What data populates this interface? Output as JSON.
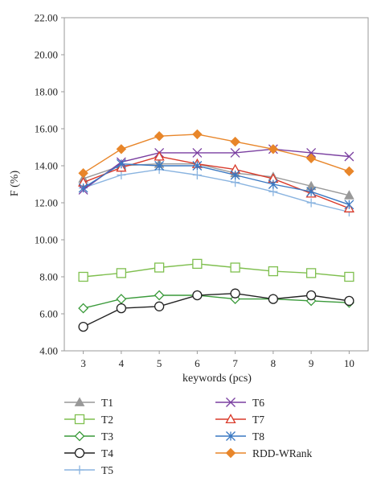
{
  "chart_data": {
    "type": "line",
    "xlabel": "keywords (pcs)",
    "ylabel": "F (%)",
    "x": [
      3,
      4,
      5,
      6,
      7,
      8,
      9,
      10
    ],
    "xticks": [
      "3",
      "4",
      "5",
      "6",
      "7",
      "8",
      "9",
      "10"
    ],
    "ylim": [
      4,
      22
    ],
    "yticks": [
      "4.00",
      "6.00",
      "8.00",
      "10.00",
      "12.00",
      "14.00",
      "16.00",
      "18.00",
      "20.00",
      "22.00"
    ],
    "grid": false,
    "legend_position": "bottom",
    "series": [
      {
        "name": "T1",
        "color": "#999999",
        "marker": "triangle-filled",
        "values": [
          13.3,
          14.0,
          14.1,
          14.1,
          13.6,
          13.4,
          12.9,
          12.4
        ]
      },
      {
        "name": "T2",
        "color": "#7fbf4f",
        "marker": "square-open",
        "values": [
          8.0,
          8.2,
          8.5,
          8.7,
          8.5,
          8.3,
          8.2,
          8.0
        ]
      },
      {
        "name": "T3",
        "color": "#3a9a3a",
        "marker": "diamond-open",
        "values": [
          6.3,
          6.8,
          7.0,
          7.0,
          6.8,
          6.8,
          6.7,
          6.6
        ]
      },
      {
        "name": "T4",
        "color": "#222222",
        "marker": "circle-open",
        "values": [
          5.3,
          6.3,
          6.4,
          7.0,
          7.1,
          6.8,
          7.0,
          6.7
        ]
      },
      {
        "name": "T5",
        "color": "#8ab4e0",
        "marker": "plus",
        "values": [
          12.8,
          13.5,
          13.8,
          13.5,
          13.1,
          12.6,
          12.0,
          11.5
        ]
      },
      {
        "name": "T6",
        "color": "#7a3fa0",
        "marker": "x",
        "values": [
          12.7,
          14.2,
          14.7,
          14.7,
          14.7,
          14.9,
          14.7,
          14.5
        ]
      },
      {
        "name": "T7",
        "color": "#d93a2a",
        "marker": "triangle-open",
        "values": [
          13.1,
          13.9,
          14.5,
          14.1,
          13.8,
          13.3,
          12.5,
          11.7
        ]
      },
      {
        "name": "T8",
        "color": "#3a78c2",
        "marker": "asterisk",
        "values": [
          12.8,
          14.1,
          14.0,
          14.0,
          13.5,
          13.0,
          12.6,
          11.9
        ]
      },
      {
        "name": "RDD-WRank",
        "color": "#e8862a",
        "marker": "diamond-filled",
        "values": [
          13.6,
          14.9,
          15.6,
          15.7,
          15.3,
          14.9,
          14.4,
          13.7
        ]
      }
    ]
  }
}
